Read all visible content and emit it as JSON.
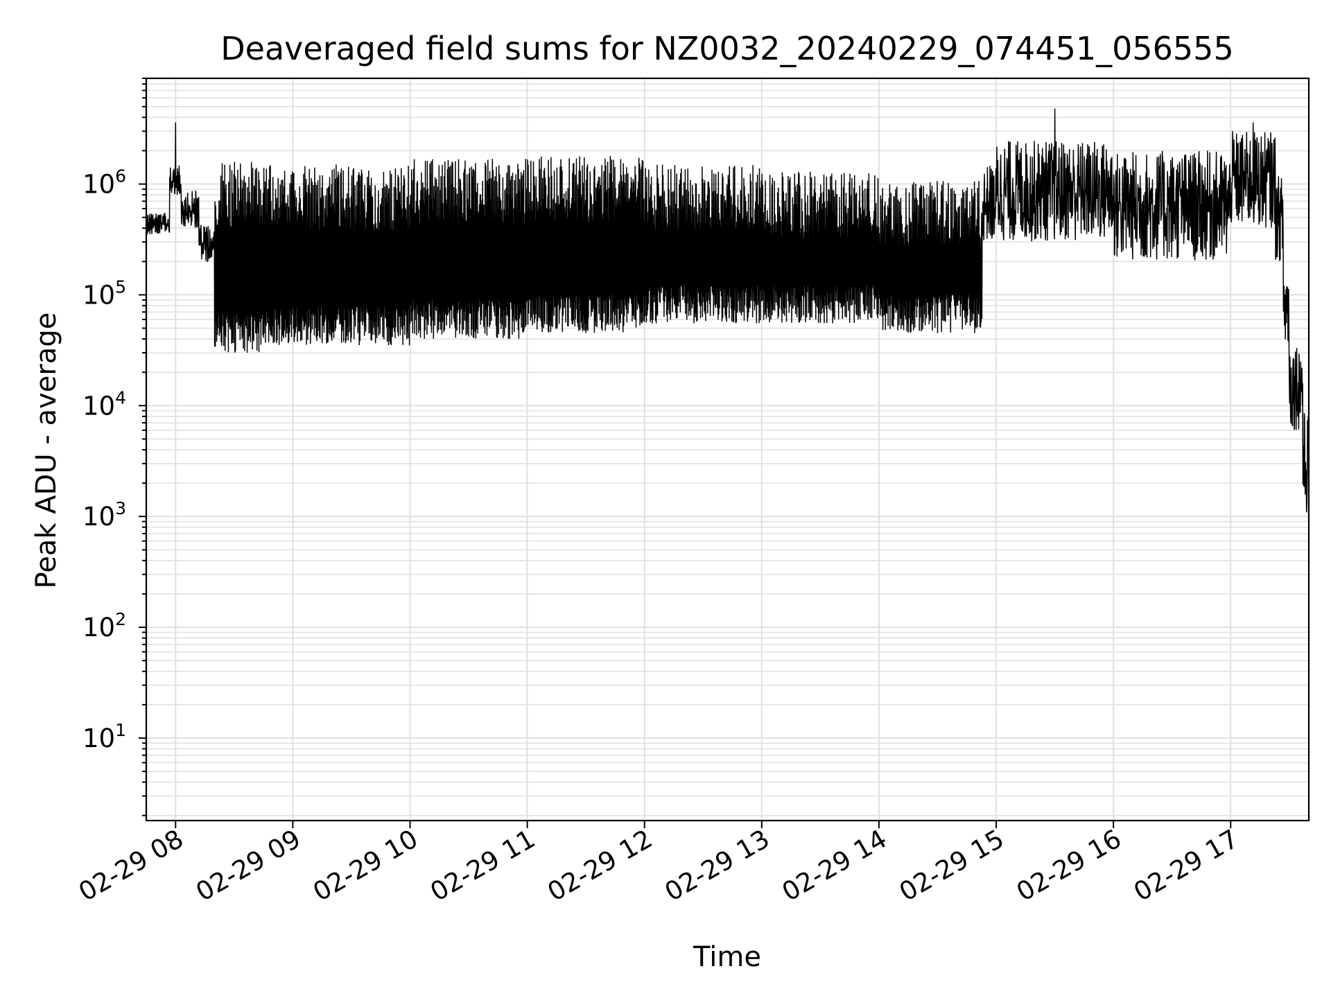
{
  "chart_data": {
    "type": "line",
    "title": "Deaveraged field sums for NZ0032_20240229_074451_056555",
    "xlabel": "Time",
    "ylabel": "Peak ADU - average",
    "yscale": "log",
    "ylim": [
      1.8,
      9000000
    ],
    "xlim": [
      "02-29 07:45",
      "02-29 17:40"
    ],
    "grid": true,
    "line_color": "#000000",
    "grid_color": "#e0e0e0",
    "x_ticks": [
      {
        "time": "02-29 08:00",
        "label": "02-29 08"
      },
      {
        "time": "02-29 09:00",
        "label": "02-29 09"
      },
      {
        "time": "02-29 10:00",
        "label": "02-29 10"
      },
      {
        "time": "02-29 11:00",
        "label": "02-29 11"
      },
      {
        "time": "02-29 12:00",
        "label": "02-29 12"
      },
      {
        "time": "02-29 13:00",
        "label": "02-29 13"
      },
      {
        "time": "02-29 14:00",
        "label": "02-29 14"
      },
      {
        "time": "02-29 15:00",
        "label": "02-29 15"
      },
      {
        "time": "02-29 16:00",
        "label": "02-29 16"
      },
      {
        "time": "02-29 17:00",
        "label": "02-29 17"
      }
    ],
    "y_ticks": [
      {
        "value": 10,
        "base": "10",
        "exp": "1"
      },
      {
        "value": 100,
        "base": "10",
        "exp": "2"
      },
      {
        "value": 1000,
        "base": "10",
        "exp": "3"
      },
      {
        "value": 10000,
        "base": "10",
        "exp": "4"
      },
      {
        "value": 100000,
        "base": "10",
        "exp": "5"
      },
      {
        "value": 1000000,
        "base": "10",
        "exp": "6"
      }
    ],
    "series": [
      {
        "segments": [
          {
            "start": "02-29 07:45",
            "end": "02-29 07:57",
            "low": 350000,
            "high": 550000
          },
          {
            "start": "02-29 07:57",
            "end": "02-29 08:03",
            "low": 800000,
            "high": 1500000,
            "peak": 3600000
          },
          {
            "start": "02-29 08:03",
            "end": "02-29 08:12",
            "low": 400000,
            "high": 900000
          },
          {
            "start": "02-29 08:12",
            "end": "02-29 08:20",
            "low": 200000,
            "high": 450000
          },
          {
            "start": "02-29 08:20",
            "end": "02-29 08:45",
            "low": 30000,
            "high": 1600000
          },
          {
            "start": "02-29 08:45",
            "end": "02-29 10:00",
            "low": 35000,
            "high": 1500000
          },
          {
            "start": "02-29 10:00",
            "end": "02-29 11:00",
            "low": 40000,
            "high": 1700000
          },
          {
            "start": "02-29 11:00",
            "end": "02-29 12:00",
            "low": 45000,
            "high": 1800000
          },
          {
            "start": "02-29 12:00",
            "end": "02-29 13:00",
            "low": 55000,
            "high": 1500000
          },
          {
            "start": "02-29 13:00",
            "end": "02-29 14:00",
            "low": 55000,
            "high": 1300000
          },
          {
            "start": "02-29 14:00",
            "end": "02-29 14:53",
            "low": 45000,
            "high": 1100000
          },
          {
            "start": "02-29 14:53",
            "end": "02-29 15:00",
            "low": 300000,
            "high": 1500000
          },
          {
            "start": "02-29 15:00",
            "end": "02-29 16:00",
            "low": 300000,
            "high": 2500000,
            "peak": 4800000
          },
          {
            "start": "02-29 16:00",
            "end": "02-29 17:00",
            "low": 200000,
            "high": 2000000
          },
          {
            "start": "02-29 17:00",
            "end": "02-29 17:23",
            "low": 400000,
            "high": 3000000,
            "peak": 3600000
          },
          {
            "start": "02-29 17:23",
            "end": "02-29 17:27",
            "low": 200000,
            "high": 1200000
          },
          {
            "start": "02-29 17:27",
            "end": "02-29 17:30",
            "low": 30000,
            "high": 200000
          },
          {
            "start": "02-29 17:30",
            "end": "02-29 17:37",
            "low": 6000,
            "high": 40000
          },
          {
            "start": "02-29 17:37",
            "end": "02-29 17:40",
            "low": 1000,
            "high": 9000
          }
        ]
      }
    ]
  }
}
